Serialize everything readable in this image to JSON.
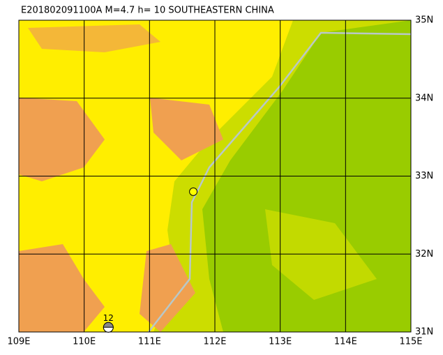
{
  "title": "E201802091100A M=4.7 h= 10 SOUTHEASTERN CHINA",
  "map": {
    "xlim": [
      109,
      115
    ],
    "ylim": [
      31,
      35
    ],
    "xticks": [
      {
        "value": 109,
        "label": "109E"
      },
      {
        "value": 110,
        "label": "110E"
      },
      {
        "value": 111,
        "label": "111E"
      },
      {
        "value": 112,
        "label": "112E"
      },
      {
        "value": 113,
        "label": "113E"
      },
      {
        "value": 114,
        "label": "114E"
      },
      {
        "value": 115,
        "label": "115E"
      }
    ],
    "yticks": [
      {
        "value": 31,
        "label": "31N"
      },
      {
        "value": 32,
        "label": "32N"
      },
      {
        "value": 33,
        "label": "33N"
      },
      {
        "value": 34,
        "label": "34N"
      },
      {
        "value": 35,
        "label": "35N"
      }
    ],
    "event": {
      "lon": 111.67,
      "lat": 32.8
    },
    "station": {
      "label": "12",
      "lon": 110.37,
      "lat": 31.06
    }
  }
}
